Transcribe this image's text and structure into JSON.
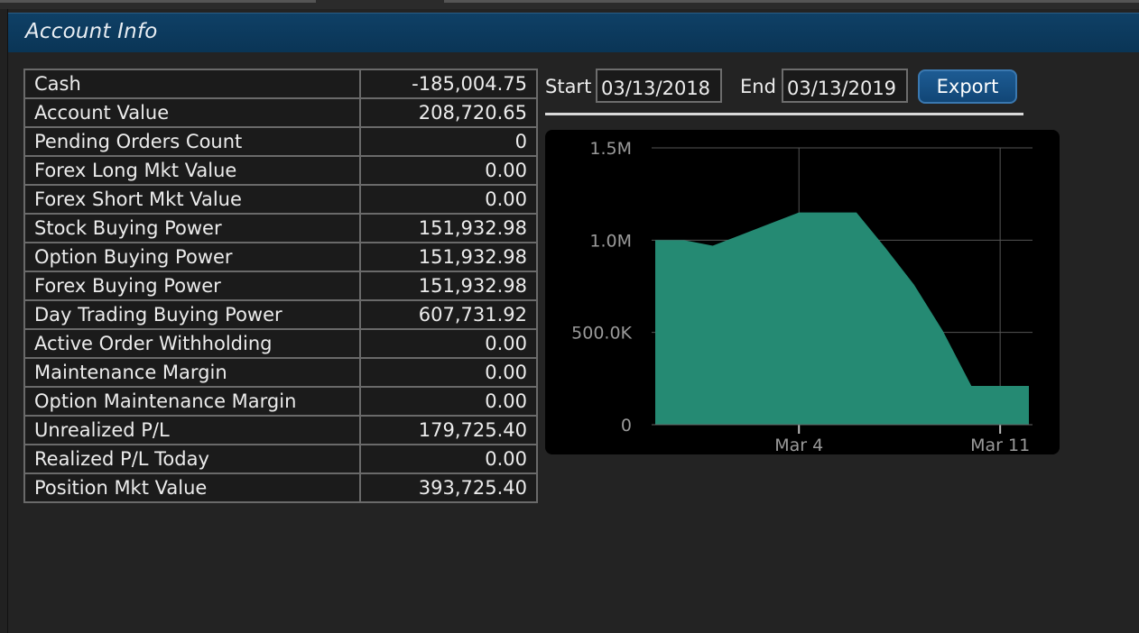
{
  "panel": {
    "title": "Account Info"
  },
  "account_rows": [
    {
      "label": "Cash",
      "value": "-185,004.75"
    },
    {
      "label": "Account Value",
      "value": "208,720.65"
    },
    {
      "label": "Pending Orders Count",
      "value": "0"
    },
    {
      "label": "Forex Long Mkt Value",
      "value": "0.00"
    },
    {
      "label": "Forex Short Mkt Value",
      "value": "0.00"
    },
    {
      "label": "Stock Buying Power",
      "value": "151,932.98"
    },
    {
      "label": "Option Buying Power",
      "value": "151,932.98"
    },
    {
      "label": "Forex Buying Power",
      "value": "151,932.98"
    },
    {
      "label": "Day Trading Buying Power",
      "value": "607,731.92"
    },
    {
      "label": "Active Order Withholding",
      "value": "0.00"
    },
    {
      "label": "Maintenance Margin",
      "value": "0.00"
    },
    {
      "label": "Option Maintenance Margin",
      "value": "0.00"
    },
    {
      "label": "Unrealized P/L",
      "value": "179,725.40"
    },
    {
      "label": "Realized P/L Today",
      "value": "0.00"
    },
    {
      "label": "Position Mkt Value",
      "value": "393,725.40"
    }
  ],
  "controls": {
    "start_label": "Start",
    "start_value": "03/13/2018",
    "end_label": "End",
    "end_value": "03/13/2019",
    "export_label": "Export"
  },
  "colors": {
    "title_bar": "#0b3a5e",
    "area_fill": "#258a73",
    "export_button": "#1a5289"
  },
  "chart_data": {
    "type": "area",
    "x": [
      "Feb 27",
      "Feb 28",
      "Mar 1",
      "Mar 2",
      "Mar 3",
      "Mar 4",
      "Mar 5",
      "Mar 6",
      "Mar 7",
      "Mar 8",
      "Mar 9",
      "Mar 10",
      "Mar 11",
      "Mar 12"
    ],
    "series": [
      {
        "values": [
          1000000,
          1000000,
          970000,
          1030000,
          1090000,
          1150000,
          1150000,
          1150000,
          960000,
          760000,
          510000,
          210000,
          210000,
          210000
        ]
      }
    ],
    "ytick_labels": [
      "0",
      "500.0K",
      "1.0M",
      "1.5M"
    ],
    "ytick_values": [
      0,
      500000,
      1000000,
      1500000
    ],
    "xtick_labels": [
      "Mar 4",
      "Mar 11"
    ],
    "ylim": [
      0,
      1500000
    ],
    "grid": true,
    "legend": "none"
  }
}
